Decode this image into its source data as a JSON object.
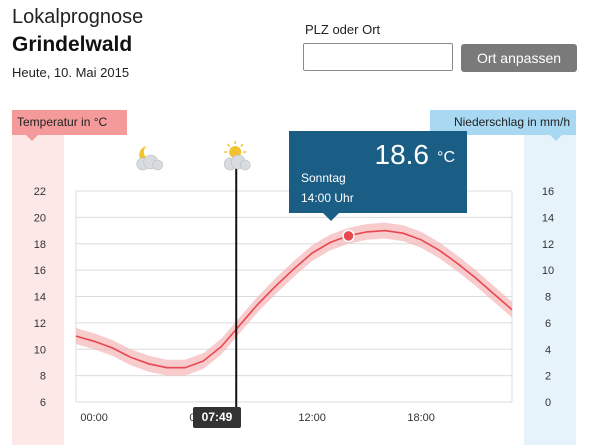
{
  "header": {
    "title_light": "Lokalprognose",
    "title_strong": "Grindelwald",
    "date": "Heute, 10. Mai 2015"
  },
  "search": {
    "label": "PLZ oder Ort",
    "value": "",
    "placeholder": "",
    "button_label": "Ort anpassen"
  },
  "legend": {
    "left_tag": "Temperatur in °C",
    "right_tag": "Niederschlag in mm/h"
  },
  "tooltip": {
    "value": "18.6",
    "unit": "°C",
    "day": "Sonntag",
    "time": "14:00 Uhr"
  },
  "current_time": "07:49",
  "icons": [
    {
      "name": "moon-cloud-icon",
      "time_h": 3
    },
    {
      "name": "sun-cloud-icon",
      "time_h": 7.82
    }
  ],
  "colors": {
    "temperature_line": "#e8474f",
    "temperature_band": "#f5b5b8",
    "tooltip_bg": "#1a5e86",
    "precip_band": "#e6f3fb",
    "temp_band": "#fde8e8",
    "button_bg": "#7a7a7a"
  },
  "chart_data": {
    "type": "line",
    "x_ticks": [
      "00:00",
      "06:00",
      "12:00",
      "18:00"
    ],
    "y_left": {
      "label": "Temperatur in °C",
      "ticks": [
        6,
        8,
        10,
        12,
        14,
        16,
        18,
        20,
        22
      ],
      "range": [
        6,
        22
      ]
    },
    "y_right": {
      "label": "Niederschlag in mm/h",
      "ticks": [
        0,
        2,
        4,
        6,
        8,
        10,
        12,
        14,
        16
      ],
      "range": [
        0,
        16
      ]
    },
    "x_range_hours": [
      -1,
      23
    ],
    "grid": true,
    "series": [
      {
        "x_hours": [
          -1,
          0,
          1,
          2,
          3,
          4,
          5,
          6,
          7,
          8,
          9,
          10,
          11,
          12,
          13,
          14,
          15,
          16,
          17,
          18,
          19,
          20,
          21,
          22,
          23
        ],
        "y": [
          11.0,
          10.6,
          10.1,
          9.4,
          8.9,
          8.6,
          8.6,
          9.1,
          10.2,
          11.8,
          13.4,
          14.8,
          16.1,
          17.3,
          18.1,
          18.6,
          18.9,
          19.0,
          18.8,
          18.3,
          17.5,
          16.5,
          15.4,
          14.2,
          13.0
        ],
        "uncertainty": 0.6
      }
    ],
    "highlight": {
      "x_hours": 14,
      "y": 18.6
    },
    "now_marker_hours": 7.82
  }
}
